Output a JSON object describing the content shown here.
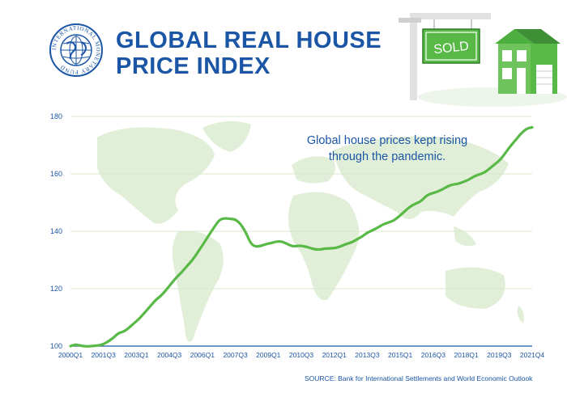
{
  "header": {
    "title_line1": "GLOBAL REAL HOUSE",
    "title_line2": "PRICE INDEX",
    "logo_text": "INTERNATIONAL MONETARY FUND"
  },
  "illustration": {
    "sign_text": "SOLD"
  },
  "source_text": "SOURCE: Bank for International Settlements and World Economic Outlook",
  "colors": {
    "brand_blue": "#1b56a6",
    "line_green": "#58b947",
    "map_green": "#dfedd6",
    "grid": "#d8e8cc"
  },
  "chart_data": {
    "type": "line",
    "title": "Global Real House Price Index",
    "annotation": [
      "Global house prices kept rising",
      "through the pandemic."
    ],
    "xlabel": "",
    "ylabel": "",
    "ylim": [
      100,
      180
    ],
    "yticks": [
      100,
      120,
      140,
      160,
      180
    ],
    "x_range": [
      "2000Q1",
      "2021Q4"
    ],
    "xtick_labels": [
      "2000Q1",
      "2001Q3",
      "2003Q1",
      "2004Q3",
      "2006Q1",
      "2007Q3",
      "2009Q1",
      "2010Q3",
      "2012Q1",
      "2013Q3",
      "2015Q1",
      "2016Q3",
      "2018Q1",
      "2019Q3",
      "2021Q4"
    ],
    "series": [
      {
        "name": "Global real house price index",
        "x": [
          0,
          1,
          2,
          3,
          4,
          5,
          6,
          7,
          8,
          9,
          10,
          11,
          12,
          13,
          14,
          15,
          16,
          17,
          18,
          19,
          20,
          21,
          22,
          23,
          24,
          25,
          26,
          27,
          28,
          29,
          30,
          31,
          32,
          33,
          34,
          35,
          36,
          37,
          38,
          39,
          40,
          41,
          42,
          43,
          44,
          45,
          46,
          47,
          48,
          49,
          50,
          51,
          52,
          53,
          54,
          55,
          56,
          57,
          58,
          59,
          60,
          61,
          62,
          63,
          64,
          65,
          66,
          67,
          68,
          69,
          70,
          71,
          72,
          73,
          74,
          75,
          76,
          77,
          78,
          79,
          80,
          81,
          82,
          83,
          84,
          85,
          86,
          87
        ],
        "values": [
          100,
          100.6,
          100.1,
          99.9,
          100,
          100.2,
          100.5,
          101.5,
          102.7,
          104.5,
          105,
          106.3,
          108,
          109.6,
          111.7,
          113.8,
          116,
          117.4,
          119.5,
          121.8,
          124,
          125.8,
          128,
          130,
          132.7,
          135.5,
          138.4,
          141.2,
          143.9,
          144.6,
          144.3,
          144.2,
          142.7,
          139.8,
          135.5,
          134.6,
          135,
          135.6,
          136,
          136.5,
          136.4,
          135.4,
          134.7,
          135,
          134.8,
          134.3,
          133.7,
          133.6,
          134,
          134,
          134.2,
          134.8,
          135.6,
          136.1,
          137.2,
          138.2,
          139.6,
          140.4,
          141.4,
          142.5,
          143.1,
          143.8,
          145.3,
          147,
          148.6,
          149.6,
          150.4,
          152.3,
          153.2,
          153.7,
          154.5,
          155.6,
          156.3,
          156.5,
          157.2,
          157.9,
          159.1,
          159.8,
          160.4,
          161.9,
          163.4,
          164.9,
          167.4,
          169.9,
          172,
          174.3,
          175.8,
          176.2
        ]
      }
    ]
  }
}
